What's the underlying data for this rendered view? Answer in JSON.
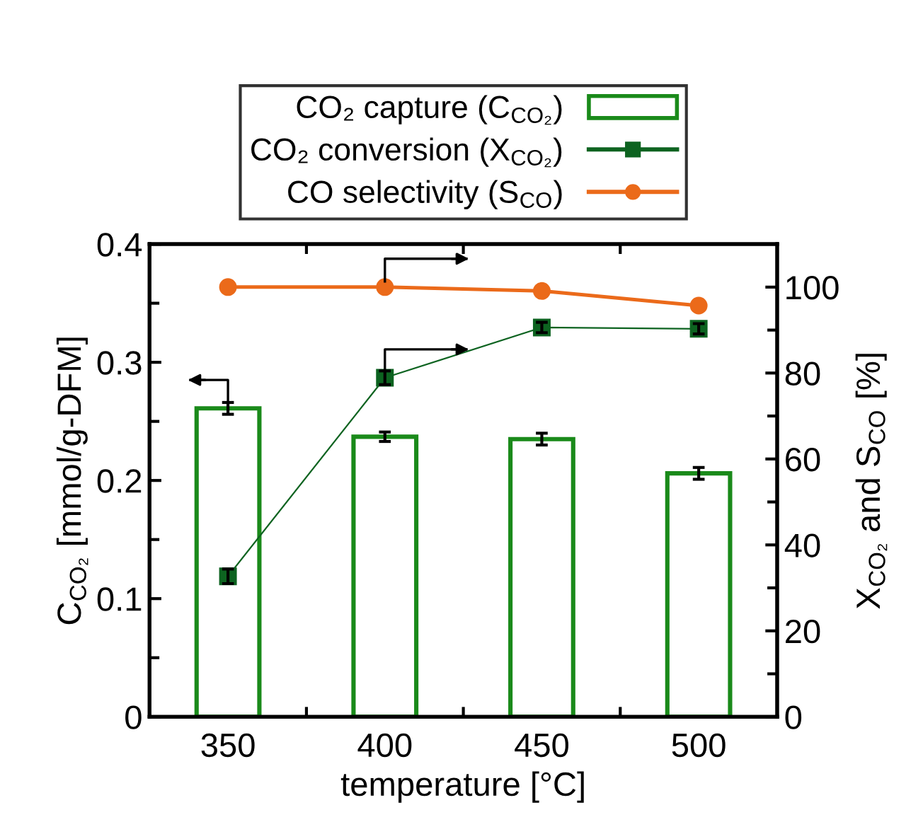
{
  "chart_data": {
    "type": "bar",
    "x": [
      350,
      400,
      450,
      500
    ],
    "xlabel": "temperature [°C]",
    "ylabel": "C$_{CO₂}$ [mmol/g-DFM]",
    "y2label": "X$_{CO₂}$ and S$_{CO}$ [%]",
    "xlim": [
      325,
      525
    ],
    "xticks": [
      350,
      {
        "value": 375,
        "label": null
      },
      400,
      {
        "value": 425,
        "label": null
      },
      450,
      {
        "value": 475,
        "label": null
      },
      500
    ],
    "ylim": [
      0,
      0.4
    ],
    "yticks": [
      0,
      {
        "value": 0.05,
        "label": null
      },
      0.1,
      {
        "value": 0.15,
        "label": null
      },
      0.2,
      {
        "value": 0.25,
        "label": null
      },
      0.3,
      {
        "value": 0.35,
        "label": null
      },
      0.4
    ],
    "y2lim": [
      0,
      110
    ],
    "y2ticks": [
      0,
      {
        "value": 10,
        "label": null
      },
      20,
      {
        "value": 30,
        "label": null
      },
      40,
      {
        "value": 50,
        "label": null
      },
      60,
      {
        "value": 70,
        "label": null
      },
      80,
      {
        "value": 90,
        "label": null
      },
      100
    ],
    "series": [
      {
        "name": "CO₂ capture (C$_{CO₂}$)",
        "axis": "y",
        "color": "#1a8a1a",
        "values": [
          0.261,
          0.237,
          0.235,
          0.206
        ],
        "errors": [
          0.005,
          0.004,
          0.005,
          0.005
        ]
      },
      {
        "name": "CO₂ conversion (X$_{CO₂}$)",
        "type": "line",
        "axis": "y2",
        "color": "#0d6320",
        "marker": "square",
        "values": [
          32.7,
          78.9,
          90.6,
          90.3
        ],
        "errors": [
          1.7,
          1.6,
          1.2,
          1.2
        ]
      },
      {
        "name": "CO selectivity (S$_{CO}$)",
        "type": "line",
        "axis": "y2",
        "color": "#eb6a1a",
        "marker": "circle",
        "values": [
          100,
          100,
          99.1,
          95.7
        ]
      }
    ],
    "legend": "top",
    "grid": false
  }
}
